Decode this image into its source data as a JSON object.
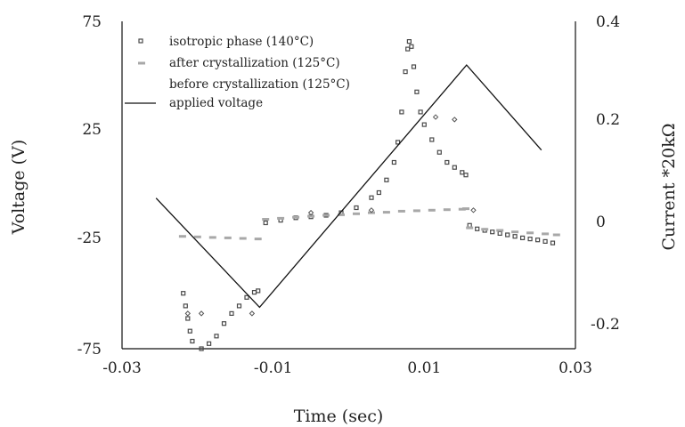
{
  "chart_data": {
    "type": "scatter",
    "xlabel": "Time (sec)",
    "ylabel_left": "Voltage (V)",
    "ylabel_right": "Current *20kΩ",
    "xlim": [
      -0.03,
      0.03
    ],
    "ylim_left": [
      -75,
      75
    ],
    "ylim_right": [
      -0.25,
      0.4
    ],
    "x_ticks": [
      "-0.03",
      "-0.01",
      "0.01",
      "0.03"
    ],
    "y_left_ticks": [
      "75",
      "25",
      "-25",
      "-75"
    ],
    "y_right_ticks": [
      "0.4",
      "0.2",
      "0",
      "-0.2"
    ],
    "grid": false,
    "legend_position": "top-left",
    "series": [
      {
        "name": "isotropic phase (140°C)",
        "marker": "square",
        "color": "#4a4a4a",
        "axis": "right",
        "x": [
          -0.0219,
          -0.0216,
          -0.0213,
          -0.021,
          -0.0207,
          -0.0195,
          -0.0185,
          -0.0175,
          -0.0165,
          -0.0155,
          -0.0145,
          -0.0135,
          -0.0125,
          -0.012,
          -0.011,
          -0.009,
          -0.007,
          -0.005,
          -0.003,
          -0.001,
          0.001,
          0.003,
          0.004,
          0.005,
          0.006,
          0.0065,
          0.007,
          0.0075,
          0.0078,
          0.008,
          0.0083,
          0.0086,
          0.009,
          0.0095,
          0.01,
          0.011,
          0.012,
          0.013,
          0.014,
          0.015,
          0.0155,
          0.016,
          0.017,
          0.018,
          0.019,
          0.02,
          0.021,
          0.022,
          0.023,
          0.024,
          0.025,
          0.026,
          0.027
        ],
        "y": [
          -0.14,
          -0.165,
          -0.19,
          -0.215,
          -0.235,
          -0.25,
          -0.24,
          -0.225,
          -0.2,
          -0.18,
          -0.165,
          -0.148,
          -0.138,
          -0.135,
          0.0,
          0.005,
          0.01,
          0.012,
          0.015,
          0.02,
          0.03,
          0.05,
          0.06,
          0.085,
          0.12,
          0.16,
          0.22,
          0.3,
          0.345,
          0.36,
          0.35,
          0.31,
          0.26,
          0.22,
          0.195,
          0.165,
          0.14,
          0.12,
          0.11,
          0.1,
          0.095,
          -0.005,
          -0.012,
          -0.015,
          -0.018,
          -0.021,
          -0.024,
          -0.027,
          -0.03,
          -0.032,
          -0.034,
          -0.037,
          -0.04
        ]
      },
      {
        "name": "after crystallization (125°C)",
        "marker": "dash",
        "color": "#a8a8a8",
        "axis": "right",
        "x": [
          -0.022,
          -0.02,
          -0.018,
          -0.016,
          -0.014,
          -0.012,
          -0.011,
          -0.009,
          -0.007,
          -0.005,
          -0.003,
          -0.001,
          0.001,
          0.003,
          0.005,
          0.007,
          0.009,
          0.011,
          0.013,
          0.015,
          0.0155,
          0.016,
          0.018,
          0.02,
          0.022,
          0.024,
          0.026,
          0.0275
        ],
        "y": [
          -0.027,
          -0.028,
          -0.029,
          -0.03,
          -0.031,
          -0.032,
          0.007,
          0.009,
          0.011,
          0.013,
          0.015,
          0.016,
          0.018,
          0.02,
          0.021,
          0.023,
          0.024,
          0.025,
          0.026,
          0.027,
          0.028,
          -0.01,
          -0.013,
          -0.015,
          -0.018,
          -0.02,
          -0.022,
          -0.024
        ]
      },
      {
        "name": "before crystallization (125°C)",
        "marker": "diamond",
        "color": "#555555",
        "axis": "right",
        "x": [
          -0.0213,
          -0.0195,
          -0.0128,
          -0.005,
          0.003,
          0.0115,
          0.014,
          0.0165
        ],
        "y": [
          -0.18,
          -0.18,
          -0.18,
          0.02,
          0.025,
          0.21,
          0.205,
          0.025
        ]
      },
      {
        "name": "applied voltage",
        "marker": "line",
        "color": "#111111",
        "axis": "left",
        "x": [
          -0.0255,
          -0.0118,
          0.0156,
          0.0255
        ],
        "y": [
          -6,
          -56,
          55,
          16
        ]
      }
    ]
  }
}
